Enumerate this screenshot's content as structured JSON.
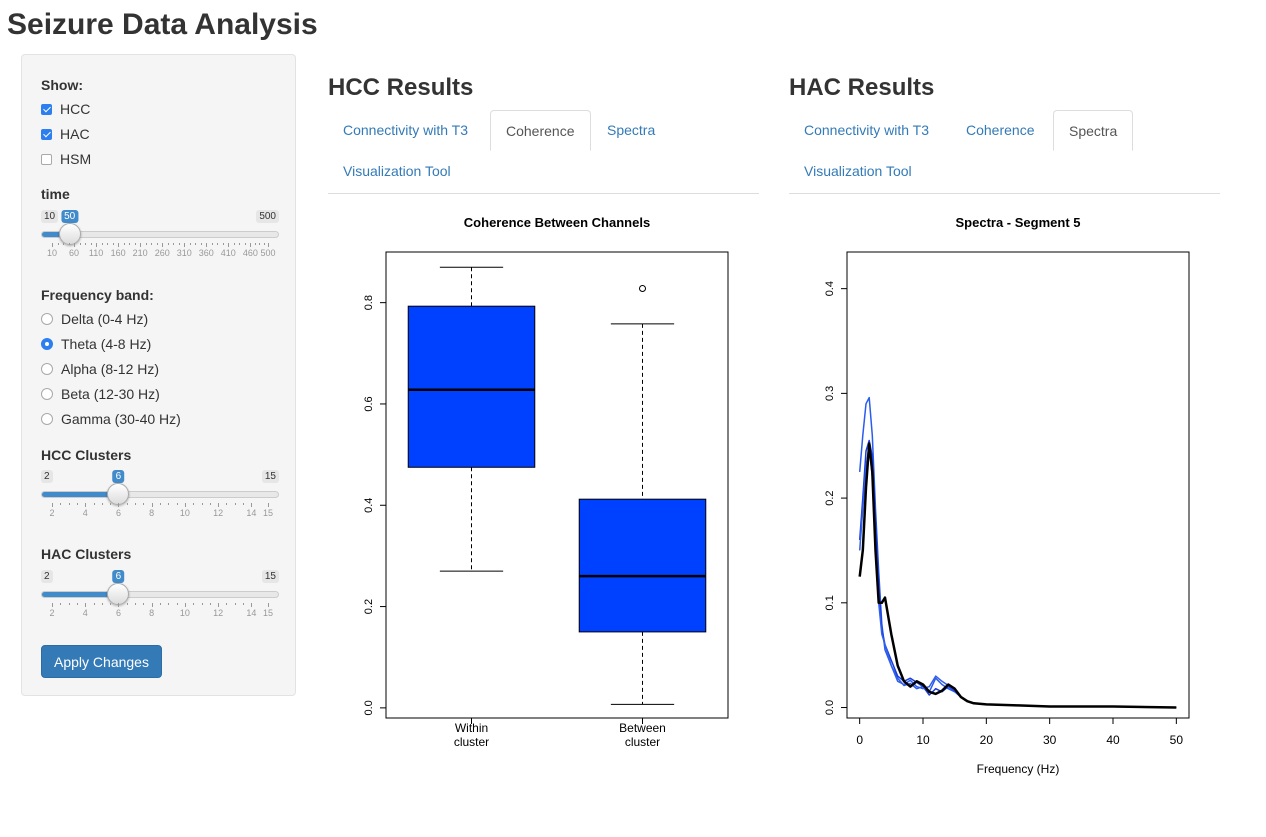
{
  "app_title": "Seizure Data Analysis",
  "sidebar": {
    "show_label": "Show:",
    "show_options": [
      {
        "label": "HCC",
        "checked": true
      },
      {
        "label": "HAC",
        "checked": true
      },
      {
        "label": "HSM",
        "checked": false
      }
    ],
    "time": {
      "label": "time",
      "min": 10,
      "max": 500,
      "value": 50,
      "tick_labels": [
        "10",
        "60",
        "110",
        "160",
        "210",
        "260",
        "310",
        "360",
        "410",
        "460",
        "500"
      ]
    },
    "frequency_band": {
      "label": "Frequency band:",
      "options": [
        "Delta (0-4 Hz)",
        "Theta (4-8 Hz)",
        "Alpha (8-12 Hz)",
        "Beta (12-30 Hz)",
        "Gamma (30-40 Hz)"
      ],
      "selected": "Theta (4-8 Hz)"
    },
    "hcc_clusters": {
      "label": "HCC Clusters",
      "min": 2,
      "max": 15,
      "value": 6,
      "tick_labels": [
        "2",
        "4",
        "6",
        "8",
        "10",
        "12",
        "14",
        "15"
      ]
    },
    "hac_clusters": {
      "label": "HAC Clusters",
      "min": 2,
      "max": 15,
      "value": 6,
      "tick_labels": [
        "2",
        "4",
        "6",
        "8",
        "10",
        "12",
        "14",
        "15"
      ]
    },
    "apply_label": "Apply Changes"
  },
  "hcc_panel": {
    "title": "HCC Results",
    "tabs": [
      "Connectivity with T3",
      "Coherence",
      "Spectra",
      "Visualization Tool"
    ],
    "active_tab": "Coherence"
  },
  "hac_panel": {
    "title": "HAC Results",
    "tabs": [
      "Connectivity with T3",
      "Coherence",
      "Spectra",
      "Visualization Tool"
    ],
    "active_tab": "Spectra"
  },
  "colors": {
    "accent": "#337ab7",
    "box_fill": "#0040ff",
    "spectra_blue": "#1f4fe0",
    "spectra_black": "#000000"
  },
  "chart_data": [
    {
      "type": "box",
      "title": "Coherence Between Channels",
      "categories": [
        "Within cluster",
        "Between cluster"
      ],
      "boxes": [
        {
          "whisker_low": 0.27,
          "q1": 0.475,
          "median": 0.628,
          "q3": 0.793,
          "whisker_high": 0.87,
          "outliers": []
        },
        {
          "whisker_low": 0.007,
          "q1": 0.15,
          "median": 0.26,
          "q3": 0.412,
          "whisker_high": 0.758,
          "outliers": [
            0.828
          ]
        }
      ],
      "ylim": [
        -0.02,
        0.9
      ],
      "yticks": [
        0.0,
        0.2,
        0.4,
        0.6,
        0.8
      ],
      "xlabel": "",
      "ylabel": ""
    },
    {
      "type": "line",
      "title": "Spectra - Segment 5",
      "xlabel": "Frequency (Hz)",
      "ylabel": "",
      "xlim": [
        -2,
        52
      ],
      "ylim": [
        -0.01,
        0.435
      ],
      "xticks": [
        0,
        10,
        20,
        30,
        40,
        50
      ],
      "yticks": [
        0.0,
        0.1,
        0.2,
        0.3,
        0.4
      ],
      "series": [
        {
          "color": "#2a5cf0",
          "width": 1.5,
          "x": [
            0,
            0.5,
            1,
            1.5,
            2,
            2.5,
            3,
            3.5,
            4,
            5,
            6,
            7,
            8,
            9,
            10,
            11,
            12,
            13,
            14,
            15,
            16,
            17,
            18,
            20,
            25,
            30,
            40,
            50
          ],
          "y": [
            0.225,
            0.26,
            0.29,
            0.296,
            0.26,
            0.19,
            0.13,
            0.08,
            0.055,
            0.04,
            0.028,
            0.021,
            0.023,
            0.018,
            0.02,
            0.015,
            0.028,
            0.022,
            0.018,
            0.015,
            0.01,
            0.006,
            0.004,
            0.003,
            0.002,
            0.001,
            0.001,
            0.0
          ]
        },
        {
          "color": "#1a3fd8",
          "width": 1.5,
          "x": [
            0,
            0.5,
            1,
            1.5,
            2,
            2.5,
            3,
            3.5,
            4,
            5,
            6,
            7,
            8,
            9,
            10,
            11,
            12,
            13,
            14,
            15,
            16,
            17,
            18,
            20,
            25,
            30,
            40,
            50
          ],
          "y": [
            0.16,
            0.2,
            0.245,
            0.255,
            0.24,
            0.18,
            0.12,
            0.075,
            0.06,
            0.045,
            0.03,
            0.025,
            0.028,
            0.024,
            0.02,
            0.012,
            0.018,
            0.015,
            0.02,
            0.016,
            0.01,
            0.006,
            0.004,
            0.003,
            0.002,
            0.001,
            0.001,
            0.0
          ]
        },
        {
          "color": "#3360e8",
          "width": 1.5,
          "x": [
            0,
            0.5,
            1,
            1.5,
            2,
            2.5,
            3,
            3.5,
            4,
            5,
            6,
            7,
            8,
            9,
            10,
            11,
            12,
            13,
            14,
            15,
            16,
            17,
            18,
            20,
            25,
            30,
            40,
            50
          ],
          "y": [
            0.15,
            0.19,
            0.23,
            0.25,
            0.22,
            0.15,
            0.1,
            0.07,
            0.06,
            0.04,
            0.025,
            0.022,
            0.026,
            0.02,
            0.018,
            0.02,
            0.03,
            0.025,
            0.021,
            0.017,
            0.01,
            0.006,
            0.004,
            0.003,
            0.002,
            0.001,
            0.001,
            0.0
          ]
        },
        {
          "color": "#000000",
          "width": 2.5,
          "x": [
            0,
            0.5,
            1,
            1.5,
            2,
            2.5,
            3,
            3.5,
            4,
            5,
            6,
            7,
            8,
            9,
            10,
            11,
            12,
            13,
            14,
            15,
            16,
            17,
            18,
            20,
            25,
            30,
            40,
            50
          ],
          "y": [
            0.125,
            0.15,
            0.21,
            0.252,
            0.225,
            0.15,
            0.1,
            0.1,
            0.105,
            0.07,
            0.04,
            0.025,
            0.02,
            0.025,
            0.022,
            0.015,
            0.013,
            0.016,
            0.022,
            0.018,
            0.01,
            0.006,
            0.004,
            0.003,
            0.002,
            0.001,
            0.001,
            0.0
          ]
        }
      ]
    }
  ]
}
